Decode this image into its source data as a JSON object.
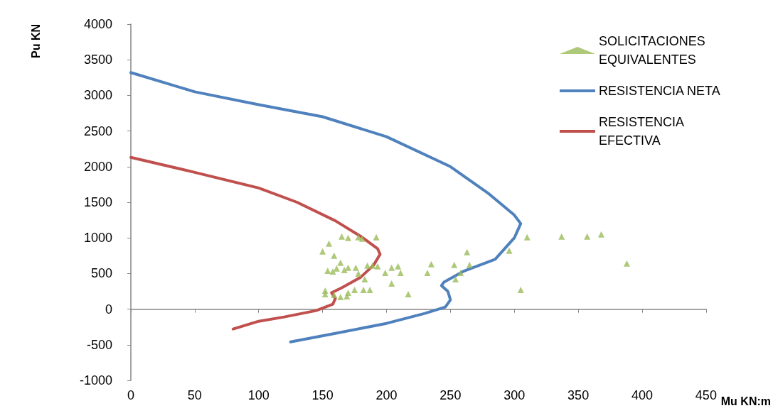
{
  "chart_data": {
    "type": "scatter",
    "xlabel": "Mu KN:m",
    "ylabel": "Pu KN",
    "xlim": [
      0,
      450
    ],
    "xticks": [
      0,
      50,
      100,
      150,
      200,
      250,
      300,
      350,
      400,
      450
    ],
    "ylim": [
      -1000,
      4000
    ],
    "yticks": [
      -1000,
      -500,
      0,
      500,
      1000,
      1500,
      2000,
      2500,
      3000,
      3500,
      4000
    ],
    "legend": "top right",
    "series": [
      {
        "name": "SOLICITACIONES EQUIVALENTES",
        "type": "scatter",
        "marker": "triangle",
        "color": "#9bbb59",
        "x": [
          165,
          170,
          178,
          181,
          192,
          155,
          150,
          159,
          164,
          154,
          158,
          161,
          167,
          170,
          176,
          178,
          185,
          189,
          193,
          199,
          204,
          209,
          211,
          235,
          232,
          204,
          183,
          152,
          152,
          164,
          169,
          170,
          175,
          182,
          187,
          217,
          159,
          310,
          263,
          296,
          253,
          265,
          258,
          254,
          305,
          337,
          357,
          368,
          388
        ],
        "values": [
          1020,
          1000,
          1010,
          990,
          1010,
          920,
          810,
          750,
          650,
          540,
          530,
          570,
          550,
          580,
          580,
          500,
          610,
          610,
          600,
          510,
          580,
          600,
          510,
          630,
          510,
          360,
          420,
          260,
          210,
          170,
          180,
          230,
          270,
          270,
          270,
          210,
          200,
          1010,
          800,
          820,
          620,
          620,
          510,
          420,
          270,
          1020,
          1020,
          1050,
          640
        ]
      },
      {
        "name": "RESISTENCIA NETA",
        "type": "line",
        "marker": "none",
        "line_style": "solid",
        "color": "#4f81bd",
        "x": [
          0,
          50,
          100,
          150,
          200,
          250,
          280,
          300,
          305,
          300,
          285,
          260,
          245,
          243,
          248,
          250,
          246,
          230,
          200,
          160,
          125
        ],
        "values": [
          3320,
          3050,
          2870,
          2700,
          2420,
          2000,
          1620,
          1320,
          1200,
          1000,
          700,
          530,
          380,
          330,
          250,
          130,
          30,
          -60,
          -200,
          -340,
          -460
        ]
      },
      {
        "name": "RESISTENCIA EFECTIVA",
        "type": "line",
        "marker": "none",
        "line_style": "solid",
        "color": "#c0504d",
        "x": [
          0,
          50,
          100,
          130,
          160,
          180,
          193,
          195,
          190,
          180,
          165,
          157,
          160,
          158,
          145,
          120,
          100,
          80
        ],
        "values": [
          2130,
          1920,
          1700,
          1500,
          1240,
          1020,
          850,
          770,
          620,
          450,
          300,
          230,
          150,
          70,
          -20,
          -110,
          -170,
          -280
        ]
      }
    ]
  }
}
